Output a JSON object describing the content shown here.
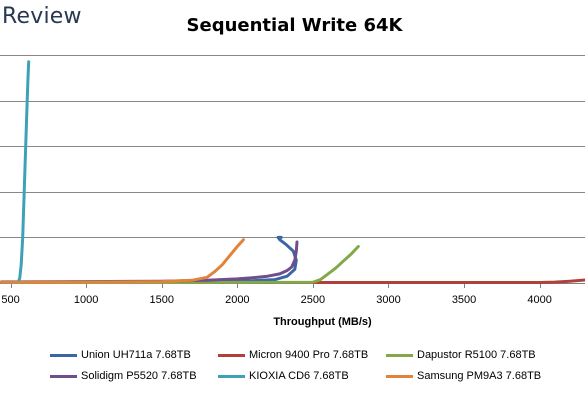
{
  "brand": "Review",
  "chart_data": {
    "type": "line",
    "title": "Sequential Write 64K",
    "xlabel": "Throughput (MB/s)",
    "ylabel": "",
    "xlim": [
      430,
      4300
    ],
    "ylim": [
      0,
      100
    ],
    "x_ticks": [
      500,
      1000,
      1500,
      2000,
      2500,
      3000,
      3500,
      4000
    ],
    "x_tick_labels": [
      "500",
      "1000",
      "1500",
      "2000",
      "2500",
      "3000",
      "3500",
      "4000"
    ],
    "y_gridlines": [
      0,
      20,
      40,
      60,
      80,
      100
    ],
    "grid": "horizontal",
    "legend_position": "bottom",
    "series": [
      {
        "name": "Union UH711a 7.68TB",
        "color": "#3a66a6",
        "x": [
          440,
          700,
          1000,
          1500,
          1900,
          2100,
          2250,
          2330,
          2380,
          2390,
          2370,
          2320,
          2280,
          2270,
          2290
        ],
        "y": [
          0.3,
          0.4,
          0.5,
          0.6,
          0.8,
          1.0,
          1.5,
          3.0,
          6.0,
          10.0,
          14.0,
          17.0,
          19.0,
          20.0,
          20.0
        ]
      },
      {
        "name": "Micron 9400 Pro 7.68TB",
        "color": "#b0403c",
        "x": [
          440,
          1000,
          2000,
          3000,
          3800,
          4000,
          4100,
          4200,
          4300
        ],
        "y": [
          0.3,
          0.3,
          0.2,
          0.2,
          0.2,
          0.2,
          0.4,
          0.8,
          1.3
        ]
      },
      {
        "name": "Dapustor R5100 7.68TB",
        "color": "#82a84a",
        "x": [
          440,
          1500,
          2500,
          2550,
          2600,
          2650,
          2700,
          2750,
          2800
        ],
        "y": [
          0.2,
          0.2,
          0.3,
          1.5,
          4.0,
          6.5,
          9.5,
          12.5,
          16.0
        ]
      },
      {
        "name": "Solidigm P5520 7.68TB",
        "color": "#6f4d8e",
        "x": [
          440,
          1000,
          1500,
          1800,
          2000,
          2100,
          2200,
          2280,
          2330,
          2360,
          2380,
          2390,
          2395
        ],
        "y": [
          0.5,
          0.6,
          0.8,
          1.2,
          1.8,
          2.3,
          3.0,
          4.0,
          5.5,
          7.0,
          10.0,
          14.0,
          18.0
        ]
      },
      {
        "name": "KIOXIA CD6 7.68TB",
        "color": "#3ea1b8",
        "x": [
          440,
          520,
          550,
          560,
          570,
          580,
          590,
          600,
          610,
          615,
          620
        ],
        "y": [
          0.2,
          0.3,
          0.5,
          2.0,
          8.0,
          20.0,
          40.0,
          60.0,
          80.0,
          90.0,
          97.0
        ]
      },
      {
        "name": "Samsung PM9A3 7.68TB",
        "color": "#e2833a",
        "x": [
          440,
          1000,
          1500,
          1700,
          1800,
          1850,
          1900,
          1950,
          2000,
          2040
        ],
        "y": [
          0.3,
          0.4,
          0.6,
          1.2,
          2.5,
          5.0,
          8.0,
          12.0,
          16.0,
          19.0
        ]
      }
    ]
  }
}
